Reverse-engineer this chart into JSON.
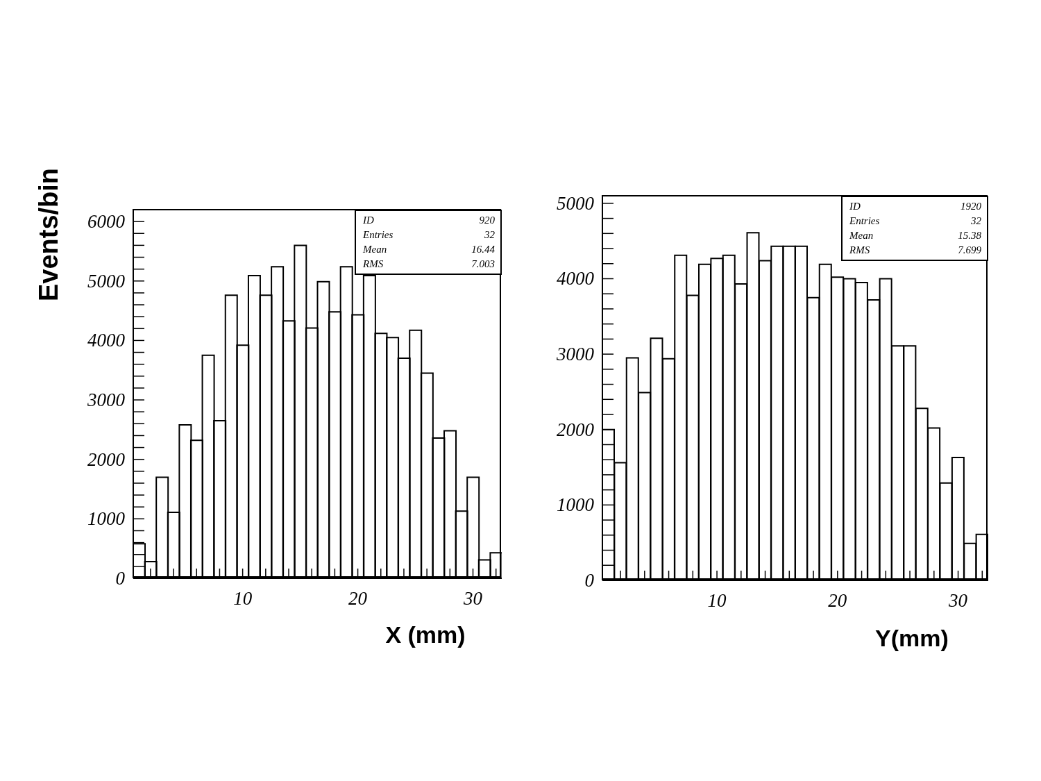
{
  "chart_data": [
    {
      "type": "histogram",
      "ylabel": "Events/bin",
      "xlabel": "X (mm)",
      "color": "#000000",
      "bins": [
        0.5,
        1.5,
        2.5,
        3.5,
        4.5,
        5.5,
        6.5,
        7.5,
        8.5,
        9.5,
        10.5,
        11.5,
        12.5,
        13.5,
        14.5,
        15.5,
        16.5,
        17.5,
        18.5,
        19.5,
        20.5,
        21.5,
        22.5,
        23.5,
        24.5,
        25.5,
        26.5,
        27.5,
        28.5,
        29.5,
        30.5,
        31.5,
        32.5
      ],
      "values": [
        580,
        280,
        1700,
        1110,
        2580,
        2320,
        3750,
        2650,
        4760,
        3920,
        5090,
        4760,
        5240,
        4330,
        5600,
        4210,
        4990,
        4480,
        5240,
        4430,
        5090,
        4120,
        4050,
        3700,
        4170,
        3450,
        2360,
        2480,
        1130,
        1700,
        310,
        430
      ],
      "xlim": [
        0.5,
        32.5
      ],
      "ylim": [
        0,
        6200
      ],
      "xticks": [
        {
          "value": 2,
          "label": null
        },
        {
          "value": 4,
          "label": null
        },
        {
          "value": 6,
          "label": null
        },
        {
          "value": 8,
          "label": null
        },
        10,
        {
          "value": 12,
          "label": null
        },
        {
          "value": 14,
          "label": null
        },
        {
          "value": 16,
          "label": null
        },
        {
          "value": 18,
          "label": null
        },
        20,
        {
          "value": 22,
          "label": null
        },
        {
          "value": 24,
          "label": null
        },
        {
          "value": 26,
          "label": null
        },
        {
          "value": 28,
          "label": null
        },
        30,
        {
          "value": 32,
          "label": null
        }
      ],
      "yticks": [
        0,
        {
          "value": 200,
          "label": null
        },
        {
          "value": 400,
          "label": null
        },
        {
          "value": 600,
          "label": null
        },
        {
          "value": 800,
          "label": null
        },
        1000,
        {
          "value": 1200,
          "label": null
        },
        {
          "value": 1400,
          "label": null
        },
        {
          "value": 1600,
          "label": null
        },
        {
          "value": 1800,
          "label": null
        },
        2000,
        {
          "value": 2200,
          "label": null
        },
        {
          "value": 2400,
          "label": null
        },
        {
          "value": 2600,
          "label": null
        },
        {
          "value": 2800,
          "label": null
        },
        3000,
        {
          "value": 3200,
          "label": null
        },
        {
          "value": 3400,
          "label": null
        },
        {
          "value": 3600,
          "label": null
        },
        {
          "value": 3800,
          "label": null
        },
        4000,
        {
          "value": 4200,
          "label": null
        },
        {
          "value": 4400,
          "label": null
        },
        {
          "value": 4600,
          "label": null
        },
        {
          "value": 4800,
          "label": null
        },
        5000,
        {
          "value": 5200,
          "label": null
        },
        {
          "value": 5400,
          "label": null
        },
        {
          "value": 5600,
          "label": null
        },
        {
          "value": 5800,
          "label": null
        },
        6000
      ],
      "annotations": [
        "ID 920",
        "Entries 32",
        "Mean 16.44",
        "RMS 7.003"
      ]
    },
    {
      "type": "histogram",
      "xlabel": "Y(mm)",
      "color": "#000000",
      "bins": [
        0.5,
        1.5,
        2.5,
        3.5,
        4.5,
        5.5,
        6.5,
        7.5,
        8.5,
        9.5,
        10.5,
        11.5,
        12.5,
        13.5,
        14.5,
        15.5,
        16.5,
        17.5,
        18.5,
        19.5,
        20.5,
        21.5,
        22.5,
        23.5,
        24.5,
        25.5,
        26.5,
        27.5,
        28.5,
        29.5,
        30.5,
        31.5,
        32.5
      ],
      "values": [
        2000,
        1560,
        2950,
        2490,
        3210,
        2940,
        4310,
        3780,
        4190,
        4270,
        4310,
        3930,
        4610,
        4240,
        4430,
        4430,
        4430,
        3750,
        4190,
        4020,
        4000,
        3950,
        3720,
        4000,
        3110,
        3110,
        2280,
        2020,
        1290,
        1630,
        490,
        610
      ],
      "xlim": [
        0.5,
        32.5
      ],
      "ylim": [
        0,
        5100
      ],
      "xticks": [
        {
          "value": 2,
          "label": null
        },
        {
          "value": 4,
          "label": null
        },
        {
          "value": 6,
          "label": null
        },
        {
          "value": 8,
          "label": null
        },
        10,
        {
          "value": 12,
          "label": null
        },
        {
          "value": 14,
          "label": null
        },
        {
          "value": 16,
          "label": null
        },
        {
          "value": 18,
          "label": null
        },
        20,
        {
          "value": 22,
          "label": null
        },
        {
          "value": 24,
          "label": null
        },
        {
          "value": 26,
          "label": null
        },
        {
          "value": 28,
          "label": null
        },
        30,
        {
          "value": 32,
          "label": null
        }
      ],
      "yticks": [
        0,
        {
          "value": 200,
          "label": null
        },
        {
          "value": 400,
          "label": null
        },
        {
          "value": 600,
          "label": null
        },
        {
          "value": 800,
          "label": null
        },
        1000,
        {
          "value": 1200,
          "label": null
        },
        {
          "value": 1400,
          "label": null
        },
        {
          "value": 1600,
          "label": null
        },
        {
          "value": 1800,
          "label": null
        },
        2000,
        {
          "value": 2200,
          "label": null
        },
        {
          "value": 2400,
          "label": null
        },
        {
          "value": 2600,
          "label": null
        },
        {
          "value": 2800,
          "label": null
        },
        3000,
        {
          "value": 3200,
          "label": null
        },
        {
          "value": 3400,
          "label": null
        },
        {
          "value": 3600,
          "label": null
        },
        {
          "value": 3800,
          "label": null
        },
        4000,
        {
          "value": 4200,
          "label": null
        },
        {
          "value": 4400,
          "label": null
        },
        {
          "value": 4600,
          "label": null
        },
        {
          "value": 4800,
          "label": null
        },
        5000
      ],
      "annotations": [
        "ID 1920",
        "Entries 32",
        "Mean 15.38",
        "RMS 7.699"
      ]
    }
  ]
}
